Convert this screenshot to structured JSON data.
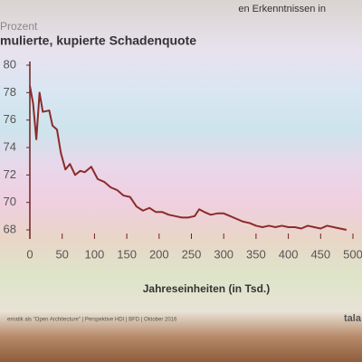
{
  "slide": {
    "header": "en Erkenntnissen in",
    "footer": "ematik als \"Open Architecture\" | Perspektive HDI | BFD | Oktober 2016",
    "logo": "tala"
  },
  "chart_data": {
    "type": "line",
    "title": "mulierte, kupierte Schadenquote",
    "subtitle": "Prozent",
    "x_label": "Jahreseinheiten (in Tsd.)",
    "x": [
      0,
      5,
      10,
      15,
      20,
      30,
      35,
      42,
      48,
      55,
      62,
      70,
      78,
      85,
      95,
      105,
      115,
      125,
      135,
      145,
      155,
      165,
      175,
      185,
      195,
      205,
      215,
      225,
      235,
      245,
      255,
      262,
      270,
      280,
      290,
      300,
      310,
      320,
      330,
      340,
      350,
      360,
      370,
      380,
      390,
      400,
      410,
      420,
      430,
      440,
      450,
      460,
      470,
      480,
      490
    ],
    "series": [
      {
        "name": "Schadenquote",
        "color": "#8c2b2b",
        "values": [
          78.5,
          77.2,
          74.6,
          78.0,
          76.6,
          76.7,
          75.6,
          75.3,
          73.6,
          72.4,
          72.8,
          72.0,
          72.3,
          72.2,
          72.6,
          71.7,
          71.5,
          71.1,
          70.9,
          70.5,
          70.4,
          69.7,
          69.4,
          69.6,
          69.3,
          69.3,
          69.1,
          69.0,
          68.9,
          68.9,
          69.0,
          69.5,
          69.3,
          69.1,
          69.2,
          69.2,
          69.0,
          68.8,
          68.6,
          68.5,
          68.3,
          68.2,
          68.3,
          68.2,
          68.3,
          68.2,
          68.2,
          68.1,
          68.3,
          68.2,
          68.1,
          68.3,
          68.2,
          68.1,
          68.0
        ]
      }
    ],
    "xlim": [
      0,
      500
    ],
    "xticks": [
      0,
      50,
      100,
      150,
      200,
      250,
      300,
      350,
      400,
      450,
      500
    ],
    "ylim": [
      68,
      80
    ],
    "yticks": [
      68,
      70,
      72,
      74,
      76,
      78,
      80
    ],
    "axis_color": "#6b2222"
  }
}
